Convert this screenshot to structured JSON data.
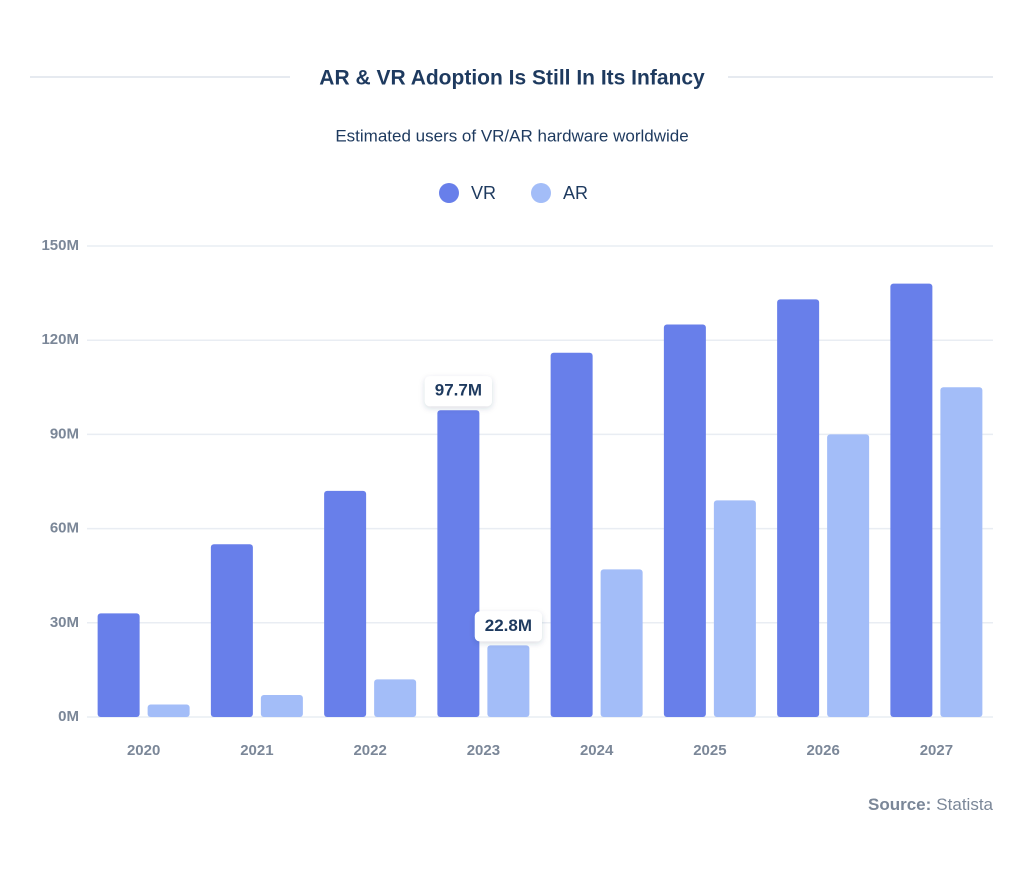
{
  "chart_data": {
    "type": "bar",
    "title": "AR & VR Adoption Is Still In Its Infancy",
    "subtitle": "Estimated users of VR/AR hardware worldwide",
    "categories": [
      "2020",
      "2021",
      "2022",
      "2023",
      "2024",
      "2025",
      "2026",
      "2027"
    ],
    "series": [
      {
        "name": "VR",
        "color": "#687fea",
        "values": [
          33,
          55,
          72,
          97.7,
          116,
          125,
          133,
          138
        ],
        "value_labels": [
          null,
          null,
          null,
          "97.7M",
          null,
          null,
          null,
          null
        ]
      },
      {
        "name": "AR",
        "color": "#a3bdf8",
        "values": [
          4,
          7,
          12,
          22.8,
          47,
          69,
          90,
          105
        ],
        "value_labels": [
          null,
          null,
          null,
          "22.8M",
          null,
          null,
          null,
          null
        ]
      }
    ],
    "ylim": [
      0,
      150
    ],
    "yticks": [
      {
        "value": 0,
        "label": "0M"
      },
      {
        "value": 30,
        "label": "30M"
      },
      {
        "value": 60,
        "label": "60M"
      },
      {
        "value": 90,
        "label": "90M"
      },
      {
        "value": 120,
        "label": "120M"
      },
      {
        "value": 150,
        "label": "150M"
      }
    ],
    "grid": true,
    "source_label": "Source:",
    "source": "Statista"
  }
}
